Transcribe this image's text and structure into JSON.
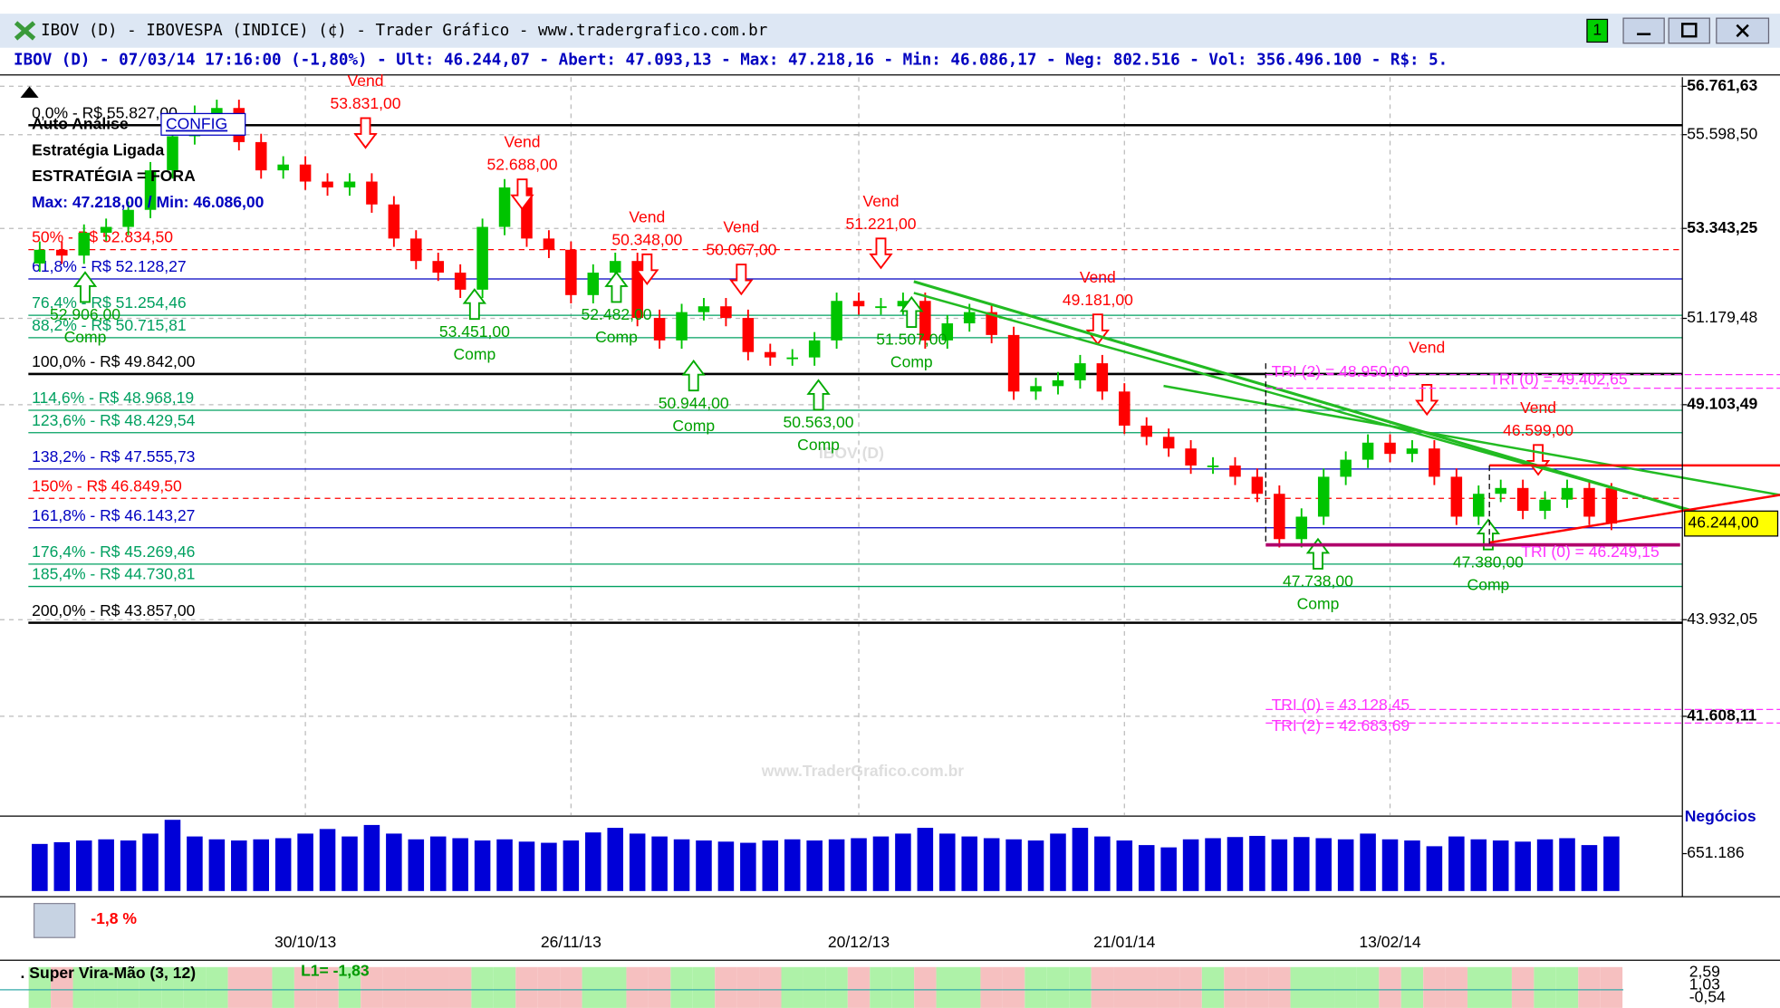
{
  "window": {
    "title": "IBOV (D) - IBOVESPA (INDICE) (¢) - Trader Gráfico - www.tradergrafico.com.br",
    "badge": "1"
  },
  "info": "IBOV (D) - 07/03/14 17:16:00 (-1,80%) - Ult: 46.244,07 - Abert: 47.093,13 - Max: 47.218,16 - Min: 46.086,17 - Neg: 802.516 - Vol: 356.496.100 - R$: 5.",
  "panel": {
    "auto": "Auto Análise",
    "config": "CONFIG",
    "strategy_on": "Estratégia Ligada",
    "strategy": "ESTRATÉGIA = FORA",
    "maxmin": "Max: 47.218,00 / Min: 46.086,00"
  },
  "watermarks": [
    "IBOV (D)",
    "www.TraderGrafico.com.br"
  ],
  "chart_data": {
    "type": "candlestick",
    "categories": [
      null,
      null,
      null,
      null,
      null,
      null,
      null,
      null,
      null,
      null,
      null,
      null,
      "30/10/13",
      null,
      null,
      null,
      null,
      null,
      null,
      null,
      null,
      null,
      null,
      null,
      "26/11/13",
      null,
      null,
      null,
      null,
      null,
      null,
      null,
      null,
      null,
      null,
      null,
      null,
      "20/12/13",
      null,
      null,
      null,
      null,
      null,
      null,
      null,
      null,
      null,
      null,
      null,
      "21/01/14",
      null,
      null,
      null,
      null,
      null,
      null,
      null,
      null,
      null,
      null,
      null,
      "13/02/14",
      null,
      null,
      null,
      null,
      null,
      null,
      null,
      null,
      null,
      null
    ],
    "open": [
      52500,
      52830,
      52690,
      53240,
      53380,
      53790,
      54740,
      55560,
      56100,
      56240,
      55420,
      54740,
      54880,
      54470,
      54330,
      54470,
      53920,
      53100,
      52560,
      52280,
      51870,
      53380,
      54330,
      53100,
      52830,
      51740,
      52280,
      52560,
      51190,
      50650,
      51330,
      51470,
      51190,
      50370,
      50240,
      50240,
      50650,
      51600,
      51470,
      51470,
      51600,
      50650,
      51060,
      51330,
      50780,
      49420,
      49550,
      49690,
      50100,
      49420,
      48600,
      48330,
      48050,
      47640,
      47640,
      47370,
      46960,
      45870,
      46410,
      47370,
      47780,
      48190,
      47920,
      48050,
      47370,
      46410,
      46960,
      47100,
      46550,
      46820,
      47100,
      47093
    ],
    "high": [
      53030,
      53030,
      53440,
      53580,
      53990,
      54940,
      55760,
      56300,
      56440,
      56440,
      55620,
      55080,
      55080,
      54670,
      54670,
      54670,
      54120,
      53300,
      52760,
      52480,
      53580,
      54530,
      54530,
      53300,
      53030,
      52480,
      52760,
      52760,
      51390,
      51530,
      51670,
      51670,
      51390,
      50570,
      50440,
      50850,
      51800,
      51800,
      51670,
      51800,
      51800,
      51260,
      51530,
      51530,
      50980,
      49750,
      49890,
      50300,
      50300,
      49620,
      48800,
      48530,
      48250,
      47840,
      47840,
      47570,
      47160,
      46610,
      47570,
      47980,
      48390,
      48390,
      48250,
      48250,
      47570,
      47160,
      47300,
      47300,
      47020,
      47300,
      47300,
      47218
    ],
    "low": [
      52300,
      52490,
      52490,
      53040,
      53180,
      53590,
      54540,
      55360,
      55900,
      55220,
      54540,
      54540,
      54270,
      54130,
      54130,
      53720,
      52900,
      52360,
      52080,
      51670,
      51670,
      53180,
      52900,
      52630,
      51540,
      51540,
      52080,
      50990,
      50450,
      50450,
      51130,
      50990,
      50170,
      50040,
      50040,
      50040,
      50450,
      51270,
      51270,
      51270,
      50450,
      50450,
      50860,
      50580,
      49220,
      49220,
      49350,
      49490,
      49220,
      48400,
      48130,
      47850,
      47440,
      47440,
      47170,
      46760,
      45670,
      45670,
      46210,
      47170,
      47580,
      47720,
      47720,
      47170,
      46210,
      46210,
      46760,
      46350,
      46350,
      46620,
      46210,
      46086
    ],
    "close": [
      52830,
      52690,
      53240,
      53380,
      53790,
      54740,
      55560,
      56100,
      56240,
      55420,
      54740,
      54880,
      54470,
      54330,
      54470,
      53920,
      53100,
      52560,
      52280,
      51870,
      53380,
      54330,
      53100,
      52830,
      51740,
      52280,
      52560,
      51190,
      50650,
      51330,
      51470,
      51190,
      50370,
      50240,
      50240,
      50650,
      51600,
      51470,
      51470,
      51600,
      50650,
      51060,
      51330,
      50780,
      49420,
      49550,
      49690,
      50100,
      49420,
      48600,
      48330,
      48050,
      47640,
      47640,
      47370,
      46960,
      45870,
      46410,
      47370,
      47780,
      48190,
      47920,
      48050,
      47370,
      46410,
      46960,
      47100,
      46550,
      46820,
      47100,
      46410,
      46244
    ],
    "volume": [
      820000,
      850000,
      880000,
      900000,
      880000,
      1000000,
      1240000,
      950000,
      900000,
      880000,
      900000,
      920000,
      1000000,
      1080000,
      950000,
      1150000,
      1000000,
      900000,
      950000,
      920000,
      880000,
      900000,
      860000,
      840000,
      880000,
      1020000,
      1100000,
      1000000,
      950000,
      900000,
      880000,
      860000,
      840000,
      880000,
      900000,
      880000,
      900000,
      920000,
      950000,
      1000000,
      1100000,
      1000000,
      950000,
      920000,
      900000,
      880000,
      1000000,
      1100000,
      950000,
      880000,
      800000,
      760000,
      900000,
      920000,
      940000,
      960000,
      900000,
      940000,
      920000,
      900000,
      1000000,
      900000,
      880000,
      780000,
      950000,
      900000,
      880000,
      860000,
      900000,
      920000,
      800000,
      950000
    ],
    "up_color": "#00c400",
    "down_color": "#ff0000",
    "volume_color": "#0000d8",
    "ylim": [
      39398,
      56925
    ],
    "yticks": [
      {
        "value": 56761.63,
        "label": "56.761,63"
      },
      {
        "value": 55598.5,
        "label": "55.598,50"
      },
      {
        "value": 53343.25,
        "label": "53.343,25"
      },
      {
        "value": 51179.48,
        "label": "51.179,48"
      },
      {
        "value": 49103.49,
        "label": "49.103,49"
      },
      {
        "value": 43932.05,
        "label": "43.932,05"
      },
      {
        "value": 41608.11,
        "label": "41.608,11"
      }
    ],
    "last": {
      "value": 46244,
      "label": "46.244,00"
    },
    "volume_title": "Negócios",
    "volume_ylim": [
      0,
      1245000
    ],
    "volume_yticks": [
      {
        "value": 651186,
        "label": "651.186"
      }
    ],
    "grid": true
  },
  "fib_levels": [
    {
      "label": "0,0% - R$ 55.827,00",
      "value": 55827,
      "color": "#000000"
    },
    {
      "label": "50% - R$ 52.834,50",
      "value": 52834.5,
      "color": "#ff0000"
    },
    {
      "label": "61,8% - R$ 52.128,27",
      "value": 52128.27,
      "color": "#0000c0"
    },
    {
      "label": "76,4% - R$ 51.254,46",
      "value": 51254.46,
      "color": "#00a060"
    },
    {
      "label": "88,2% - R$ 50.715,81",
      "value": 50715.81,
      "color": "#00a060"
    },
    {
      "label": "100,0% - R$ 49.842,00",
      "value": 49842,
      "color": "#000000"
    },
    {
      "label": "114,6% - R$ 48.968,19",
      "value": 48968.19,
      "color": "#00a060"
    },
    {
      "label": "123,6% - R$ 48.429,54",
      "value": 48429.54,
      "color": "#00a060"
    },
    {
      "label": "138,2% - R$ 47.555,73",
      "value": 47555.73,
      "color": "#0000c0"
    },
    {
      "label": "150% - R$ 46.849,50",
      "value": 46849.5,
      "color": "#ff0000"
    },
    {
      "label": "161,8% - R$ 46.143,27",
      "value": 46143.27,
      "color": "#0000c0"
    },
    {
      "label": "176,4% - R$ 45.269,46",
      "value": 45269.46,
      "color": "#00a060"
    },
    {
      "label": "185,4% - R$ 44.730,81",
      "value": 44730.81,
      "color": "#00a060"
    },
    {
      "label": "200,0% - R$ 43.857,00",
      "value": 43857,
      "color": "#000000"
    }
  ],
  "signals": {
    "sell_label": "Vend",
    "buy_label": "Comp",
    "sell": [
      "53.831,00",
      "52.688,00",
      "50.348,00",
      "50.067,00",
      "51.221,00",
      "49.181,00",
      null,
      "46.599,00"
    ],
    "buy": [
      "52.906,00",
      "53.451,00",
      "52.482,00",
      "50.944,00",
      "50.563,00",
      "51.507,00",
      "47.738,00",
      "47.380,00"
    ]
  },
  "tri_labels": [
    "TRI (2) = 48.950,00",
    "TRI (0) = 49.402,65",
    "TRI (0) = 46.249,15",
    "TRI (0) = 43.128,45",
    "TRI (2) = 42.683,69"
  ],
  "change": "-1,8 %",
  "indicator": {
    "name": ". Super Vira-Mão (3, 12)",
    "value": "L1= -1,83",
    "ticks": [
      "2,59",
      "1,03",
      "-0,54"
    ]
  }
}
